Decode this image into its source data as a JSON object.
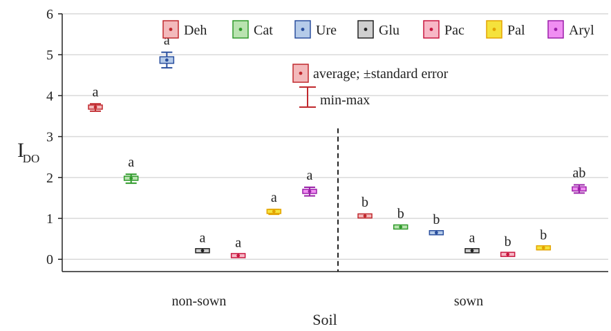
{
  "chart_data": {
    "type": "scatter",
    "title": "",
    "xlabel": "Soil",
    "ylabel_main": "I",
    "ylabel_sub": "DO",
    "categories": [
      "non-sown",
      "sown"
    ],
    "ylim": [
      -0.3,
      6
    ],
    "yticks": [
      0,
      1,
      2,
      3,
      4,
      5,
      6
    ],
    "grid": true,
    "legend_position": "top-right",
    "series": [
      {
        "name": "Deh",
        "color": "#c0282d",
        "fill": "#f3b9bb",
        "values": [
          3.72,
          1.06
        ],
        "se": [
          0.05,
          0.02
        ],
        "min": [
          3.62,
          1.02
        ],
        "max": [
          3.8,
          1.1
        ],
        "labels": [
          "a",
          "b"
        ]
      },
      {
        "name": "Cat",
        "color": "#2f9a2a",
        "fill": "#b9e3b0",
        "values": [
          1.98,
          0.79
        ],
        "se": [
          0.04,
          0.02
        ],
        "min": [
          1.86,
          0.75
        ],
        "max": [
          2.08,
          0.82
        ],
        "labels": [
          "a",
          "b"
        ]
      },
      {
        "name": "Ure",
        "color": "#2a4f9e",
        "fill": "#b5cbe9",
        "values": [
          4.87,
          0.65
        ],
        "se": [
          0.08,
          0.02
        ],
        "min": [
          4.68,
          0.62
        ],
        "max": [
          5.06,
          0.68
        ],
        "labels": [
          "a",
          "b"
        ]
      },
      {
        "name": "Glu",
        "color": "#222222",
        "fill": "#cfcfcf",
        "values": [
          0.21,
          0.21
        ],
        "se": [
          0.01,
          0.01
        ],
        "min": [
          0.19,
          0.19
        ],
        "max": [
          0.23,
          0.23
        ],
        "labels": [
          "a",
          "a"
        ]
      },
      {
        "name": "Pac",
        "color": "#c8163f",
        "fill": "#f7b7c6",
        "values": [
          0.09,
          0.12
        ],
        "se": [
          0.01,
          0.01
        ],
        "min": [
          0.07,
          0.1
        ],
        "max": [
          0.11,
          0.14
        ],
        "labels": [
          "a",
          "b"
        ]
      },
      {
        "name": "Pal",
        "color": "#e3a300",
        "fill": "#f5e23c",
        "values": [
          1.17,
          0.28
        ],
        "se": [
          0.04,
          0.01
        ],
        "min": [
          1.1,
          0.26
        ],
        "max": [
          1.22,
          0.3
        ],
        "labels": [
          "a",
          "b"
        ]
      },
      {
        "name": "Aryl",
        "color": "#9a1fa8",
        "fill": "#f08ef2",
        "values": [
          1.66,
          1.72
        ],
        "se": [
          0.05,
          0.05
        ],
        "min": [
          1.55,
          1.62
        ],
        "max": [
          1.76,
          1.82
        ],
        "labels": [
          "a",
          "ab"
        ]
      }
    ],
    "annotation_box": "average; ±standard error",
    "annotation_whisker": "min-max"
  }
}
